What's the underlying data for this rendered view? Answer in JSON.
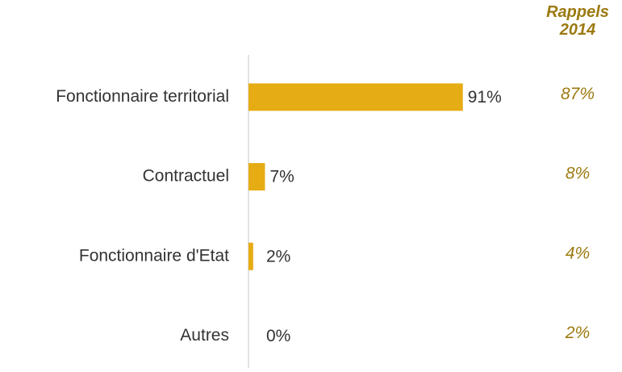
{
  "chart_data": {
    "type": "bar",
    "orientation": "horizontal",
    "categories": [
      "Fonctionnaire territorial",
      "Contractuel",
      "Fonctionnaire d'Etat",
      "Autres"
    ],
    "values": [
      91,
      7,
      2,
      0
    ],
    "value_labels": [
      "91%",
      "7%",
      "2%",
      "0%"
    ],
    "color": "#e6ac14",
    "xlim": [
      0,
      100
    ],
    "comparison": {
      "title": "Rappels 2014",
      "values": [
        87,
        8,
        4,
        2
      ],
      "value_labels": [
        "87%",
        "8%",
        "4%",
        "2%"
      ],
      "color": "#9c7a10"
    }
  }
}
